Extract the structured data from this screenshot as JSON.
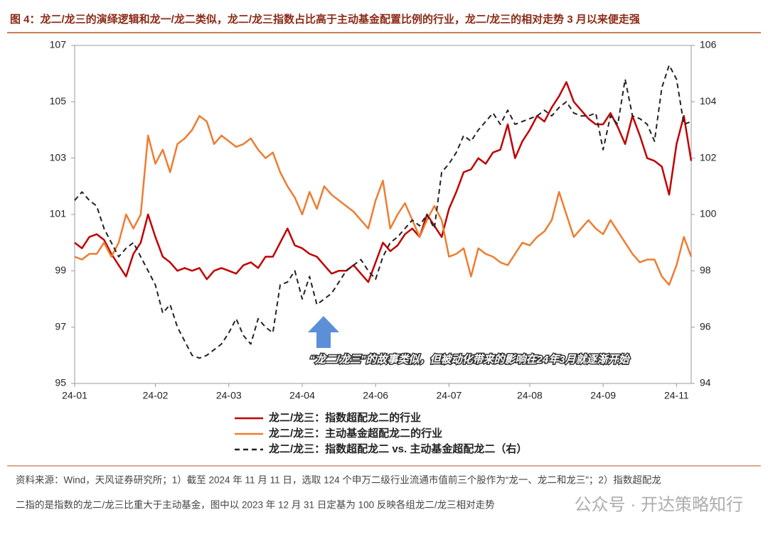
{
  "chart_data": {
    "type": "line",
    "title": "图 4：龙二/龙三的演绎逻辑和龙一/龙二类似，龙二/龙三指数占比高于主动基金配置比例的行业，龙二/龙三的相对走势 3 月以来便走强",
    "categories": [
      "24-01",
      null,
      null,
      null,
      null,
      null,
      null,
      null,
      null,
      null,
      null,
      "24-02",
      null,
      null,
      null,
      null,
      null,
      null,
      null,
      null,
      null,
      "24-03",
      null,
      null,
      null,
      null,
      null,
      null,
      null,
      null,
      null,
      "24-04",
      null,
      null,
      null,
      null,
      null,
      null,
      null,
      null,
      null,
      "24-06",
      null,
      null,
      null,
      null,
      null,
      null,
      null,
      null,
      null,
      "24-07",
      null,
      null,
      null,
      null,
      null,
      null,
      null,
      null,
      null,
      null,
      "24-08",
      null,
      null,
      null,
      null,
      null,
      null,
      null,
      null,
      null,
      "24-09",
      null,
      null,
      null,
      null,
      null,
      null,
      null,
      null,
      null,
      "24-11",
      null,
      null
    ],
    "ylim": [
      95,
      107
    ],
    "yticks": [
      95,
      97,
      99,
      101,
      103,
      105,
      107
    ],
    "y2lim": [
      94,
      106
    ],
    "y2ticks": [
      94,
      96,
      98,
      100,
      102,
      104,
      106
    ],
    "legend": "bottom",
    "series": [
      {
        "name": "龙二/龙三：指数超配龙二的行业",
        "color": "#c00000",
        "style": "solid",
        "values": [
          100.0,
          99.8,
          100.2,
          100.3,
          100.1,
          99.6,
          99.2,
          98.8,
          99.6,
          100.0,
          101.0,
          100.2,
          99.5,
          99.3,
          99.0,
          99.1,
          99.0,
          99.1,
          98.7,
          99.0,
          99.1,
          99.0,
          98.9,
          99.2,
          99.3,
          99.1,
          99.5,
          99.5,
          100.0,
          100.5,
          99.9,
          99.8,
          99.6,
          99.5,
          99.2,
          98.9,
          99.0,
          99.0,
          99.2,
          98.9,
          98.6,
          99.3,
          100.0,
          99.7,
          99.9,
          100.3,
          100.5,
          100.2,
          101.0,
          100.6,
          100.2,
          101.2,
          101.8,
          102.5,
          102.6,
          103.0,
          102.8,
          103.2,
          103.3,
          104.2,
          103.0,
          103.6,
          104.0,
          104.5,
          104.3,
          104.8,
          105.2,
          105.7,
          105.0,
          104.7,
          104.4,
          104.2,
          104.2,
          104.6,
          104.1,
          103.5,
          104.5,
          103.8,
          103.0,
          102.9,
          102.7,
          101.7,
          103.5,
          104.5,
          102.9
        ]
      },
      {
        "name": "龙二/龙三：主动基金超配龙二的行业",
        "color": "#ed7d31",
        "style": "solid",
        "values": [
          99.5,
          99.4,
          99.6,
          99.6,
          100.0,
          99.5,
          100.0,
          101.0,
          100.5,
          101.0,
          103.8,
          102.8,
          103.3,
          102.5,
          103.5,
          103.7,
          104.0,
          104.5,
          104.3,
          103.5,
          103.8,
          103.6,
          103.4,
          103.5,
          103.7,
          103.3,
          103.0,
          103.2,
          102.5,
          102.0,
          101.6,
          101.0,
          101.8,
          101.2,
          102.0,
          101.7,
          101.5,
          101.3,
          101.1,
          100.8,
          100.5,
          101.5,
          102.2,
          100.5,
          101.0,
          101.4,
          100.8,
          100.2,
          100.8,
          101.3,
          100.8,
          99.5,
          99.6,
          99.8,
          98.8,
          99.8,
          99.6,
          99.5,
          99.3,
          99.2,
          99.6,
          100.0,
          99.9,
          100.2,
          100.4,
          100.8,
          101.8,
          101.0,
          100.2,
          100.5,
          100.8,
          100.5,
          100.3,
          100.8,
          100.4,
          100.0,
          99.6,
          99.3,
          99.4,
          99.4,
          98.8,
          98.5,
          99.2,
          100.2,
          99.5
        ]
      },
      {
        "name": "龙二/龙三：指数超配龙二 vs. 主动基金超配龙二（右）",
        "color": "#222222",
        "style": "dashed",
        "axis": "y2",
        "values": [
          100.5,
          100.8,
          100.5,
          100.3,
          99.5,
          99.0,
          98.5,
          98.8,
          99.0,
          98.5,
          98.0,
          97.5,
          96.5,
          96.8,
          96.0,
          95.5,
          95.0,
          94.9,
          95.0,
          95.2,
          95.4,
          95.8,
          96.3,
          95.7,
          95.4,
          96.3,
          96.0,
          95.8,
          97.5,
          97.6,
          98.0,
          97.0,
          97.8,
          96.8,
          97.0,
          97.2,
          97.6,
          98.0,
          98.2,
          98.4,
          98.0,
          97.7,
          98.5,
          99.0,
          99.2,
          99.5,
          99.8,
          99.6,
          100.0,
          99.5,
          101.5,
          101.8,
          102.2,
          102.8,
          102.6,
          103.0,
          103.3,
          103.6,
          103.2,
          103.7,
          103.2,
          103.3,
          103.4,
          103.5,
          103.7,
          103.5,
          103.8,
          104.0,
          103.6,
          103.5,
          103.5,
          103.6,
          102.3,
          103.5,
          103.2,
          104.8,
          103.5,
          103.4,
          103.2,
          102.6,
          104.5,
          105.3,
          104.8,
          103.2,
          103.3
        ]
      }
    ],
    "annotation": "“龙二/龙三”的故事类似，但被动化带来的影响在24年3月就逐渐开始"
  },
  "footer": {
    "source_line1": "资料来源：Wind，天风证券研究所；1）截至 2024 年 11 月 11 日，选取 124 个申万二级行业流通市值前三个股作为“龙一、龙二和龙三”；2）指数超配龙",
    "source_line2": "二指的是指数的龙二/龙三比重大于主动基金，图中以 2023 年 12 月 31 日定基为 100 反映各组龙二/龙三相对走势",
    "watermark": "公众号 · 开达策略知行"
  }
}
